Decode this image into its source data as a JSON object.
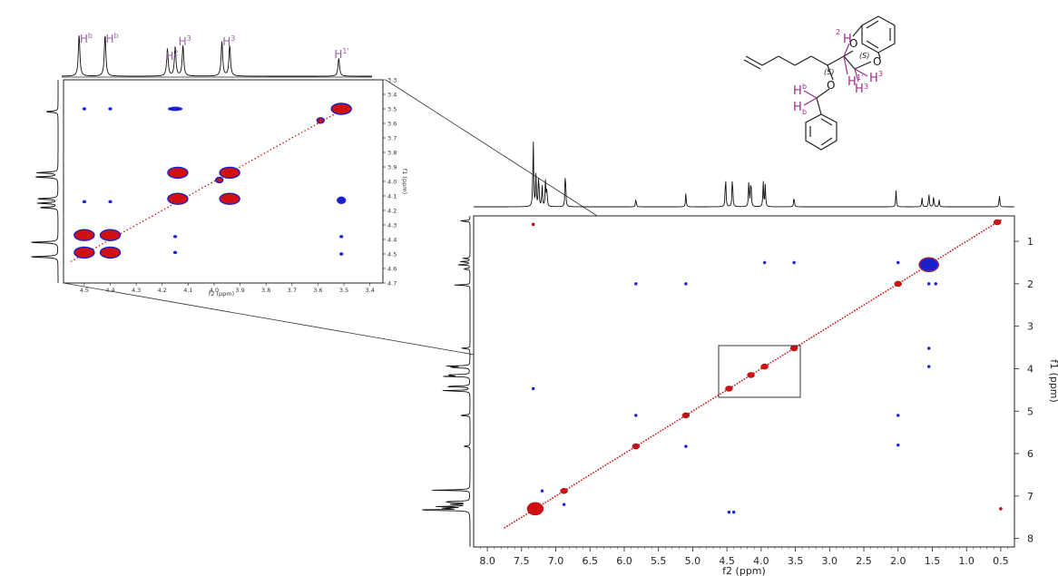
{
  "chart_data": [
    {
      "type": "heatmap",
      "title": "",
      "xlabel": "f2 (ppm)",
      "ylabel": "f1 (ppm)",
      "xlim": [
        8.2,
        0.3
      ],
      "ylim": [
        0.4,
        8.2
      ],
      "x_ticks": [
        "8.0",
        "7.5",
        "7.0",
        "6.5",
        "6.0",
        "5.5",
        "5.0",
        "4.5",
        "4.0",
        "3.5",
        "3.0",
        "2.5",
        "2.0",
        "1.5",
        "1.0",
        "0.5"
      ],
      "y_ticks": [
        "1",
        "2",
        "3",
        "4",
        "5",
        "6",
        "7",
        "8"
      ],
      "colors": {
        "positive": "#d01010",
        "negative": "#1a20c8"
      },
      "projection_1d_peaks_ppm": [
        7.33,
        7.29,
        7.25,
        7.2,
        7.15,
        7.13,
        6.86,
        5.83,
        5.1,
        4.52,
        4.42,
        4.18,
        4.15,
        3.97,
        3.94,
        3.52,
        2.03,
        1.65,
        1.55,
        1.48,
        1.4,
        0.52
      ],
      "diagonal_peaks": [
        {
          "x": 7.3,
          "y": 7.3,
          "sign": "positive"
        },
        {
          "x": 6.88,
          "y": 6.88,
          "sign": "positive"
        },
        {
          "x": 5.83,
          "y": 5.83,
          "sign": "positive"
        },
        {
          "x": 5.1,
          "y": 5.1,
          "sign": "positive"
        },
        {
          "x": 4.47,
          "y": 4.47,
          "sign": "positive"
        },
        {
          "x": 4.15,
          "y": 4.15,
          "sign": "positive"
        },
        {
          "x": 3.95,
          "y": 3.95,
          "sign": "positive"
        },
        {
          "x": 3.52,
          "y": 3.52,
          "sign": "positive"
        },
        {
          "x": 2.0,
          "y": 2.0,
          "sign": "positive"
        },
        {
          "x": 1.55,
          "y": 1.55,
          "sign": "positive"
        },
        {
          "x": 0.55,
          "y": 0.55,
          "sign": "positive"
        }
      ],
      "cross_peaks": [
        {
          "x": 7.2,
          "y": 6.88,
          "sign": "negative"
        },
        {
          "x": 6.88,
          "y": 7.2,
          "sign": "negative"
        },
        {
          "x": 7.33,
          "y": 4.47,
          "sign": "negative"
        },
        {
          "x": 7.33,
          "y": 0.6,
          "sign": "positive"
        },
        {
          "x": 5.83,
          "y": 5.1,
          "sign": "negative"
        },
        {
          "x": 5.1,
          "y": 5.83,
          "sign": "negative"
        },
        {
          "x": 5.83,
          "y": 5.8,
          "sign": "positive"
        },
        {
          "x": 5.1,
          "y": 5.1,
          "sign": "positive"
        },
        {
          "x": 2.0,
          "y": 5.8,
          "sign": "negative"
        },
        {
          "x": 2.0,
          "y": 5.1,
          "sign": "negative"
        },
        {
          "x": 5.83,
          "y": 2.0,
          "sign": "negative"
        },
        {
          "x": 5.1,
          "y": 2.0,
          "sign": "negative"
        },
        {
          "x": 4.47,
          "y": 7.38,
          "sign": "negative"
        },
        {
          "x": 4.4,
          "y": 7.38,
          "sign": "negative"
        },
        {
          "x": 3.95,
          "y": 1.5,
          "sign": "negative"
        },
        {
          "x": 3.52,
          "y": 1.5,
          "sign": "negative"
        },
        {
          "x": 1.55,
          "y": 3.52,
          "sign": "negative"
        },
        {
          "x": 1.55,
          "y": 3.95,
          "sign": "negative"
        },
        {
          "x": 2.0,
          "y": 1.5,
          "sign": "negative"
        },
        {
          "x": 1.55,
          "y": 2.0,
          "sign": "negative"
        },
        {
          "x": 1.45,
          "y": 2.0,
          "sign": "negative"
        },
        {
          "x": 1.55,
          "y": 1.55,
          "sign": "negative"
        },
        {
          "x": 0.5,
          "y": 7.3,
          "sign": "positive"
        }
      ]
    },
    {
      "type": "heatmap",
      "title": "",
      "xlabel": "f2 (ppm)",
      "ylabel": "f1 (ppm)",
      "xlim": [
        4.58,
        3.35
      ],
      "ylim": [
        3.3,
        4.7
      ],
      "x_ticks": [
        "4.5",
        "4.4",
        "4.3",
        "4.2",
        "4.1",
        "4.0",
        "3.9",
        "3.8",
        "3.7",
        "3.6",
        "3.5",
        "3.4"
      ],
      "y_ticks": [
        "3.3",
        "3.4",
        "3.5",
        "3.6",
        "3.7",
        "3.8",
        "3.9",
        "4.0",
        "4.1",
        "4.2",
        "4.3",
        "4.4",
        "4.5",
        "4.6",
        "4.7"
      ],
      "projection_peaks_ppm": [
        4.52,
        4.42,
        4.18,
        4.15,
        4.12,
        3.97,
        3.94,
        3.52
      ],
      "projection_labels": [
        {
          "text": "H",
          "sup": "b",
          "ppm": 4.5
        },
        {
          "text": "H",
          "sup": "b",
          "ppm": 4.4
        },
        {
          "text": "H",
          "sup": "2",
          "ppm": 4.17
        },
        {
          "text": "H",
          "sup": "3",
          "ppm": 4.12
        },
        {
          "text": "H",
          "sup": "3",
          "ppm": 3.95
        },
        {
          "text": "H",
          "sup": "1'",
          "ppm": 3.52
        }
      ],
      "peaks": [
        {
          "x": 4.5,
          "y": 4.37,
          "sign": "positive"
        },
        {
          "x": 4.4,
          "y": 4.37,
          "sign": "positive"
        },
        {
          "x": 4.5,
          "y": 4.49,
          "sign": "positive"
        },
        {
          "x": 4.4,
          "y": 4.49,
          "sign": "positive"
        },
        {
          "x": 4.14,
          "y": 3.94,
          "sign": "positive"
        },
        {
          "x": 3.94,
          "y": 3.94,
          "sign": "positive"
        },
        {
          "x": 4.14,
          "y": 4.12,
          "sign": "positive"
        },
        {
          "x": 3.94,
          "y": 4.12,
          "sign": "positive"
        },
        {
          "x": 3.51,
          "y": 3.5,
          "sign": "positive"
        },
        {
          "x": 3.59,
          "y": 3.58,
          "sign": "positive"
        },
        {
          "x": 3.98,
          "y": 3.99,
          "sign": "positive"
        },
        {
          "x": 4.15,
          "y": 3.5,
          "sign": "negative"
        },
        {
          "x": 4.5,
          "y": 3.5,
          "sign": "negative"
        },
        {
          "x": 4.4,
          "y": 3.5,
          "sign": "negative"
        },
        {
          "x": 3.51,
          "y": 4.13,
          "sign": "negative"
        },
        {
          "x": 3.51,
          "y": 4.38,
          "sign": "negative"
        },
        {
          "x": 3.51,
          "y": 4.5,
          "sign": "negative"
        },
        {
          "x": 4.5,
          "y": 4.14,
          "sign": "negative"
        },
        {
          "x": 4.4,
          "y": 4.14,
          "sign": "negative"
        },
        {
          "x": 4.15,
          "y": 4.38,
          "sign": "negative"
        },
        {
          "x": 4.15,
          "y": 4.49,
          "sign": "negative"
        }
      ]
    }
  ],
  "molecule": {
    "atom_labels": [
      "O",
      "O",
      "O",
      "H",
      "H",
      "H",
      "H",
      "H",
      "H"
    ],
    "superscripts": {
      "h2": "2",
      "h1p": "1'",
      "h3": "3",
      "h3b": "3",
      "hb": "b",
      "hb2": "b"
    },
    "stereo": [
      "(S)",
      "(S)"
    ]
  }
}
